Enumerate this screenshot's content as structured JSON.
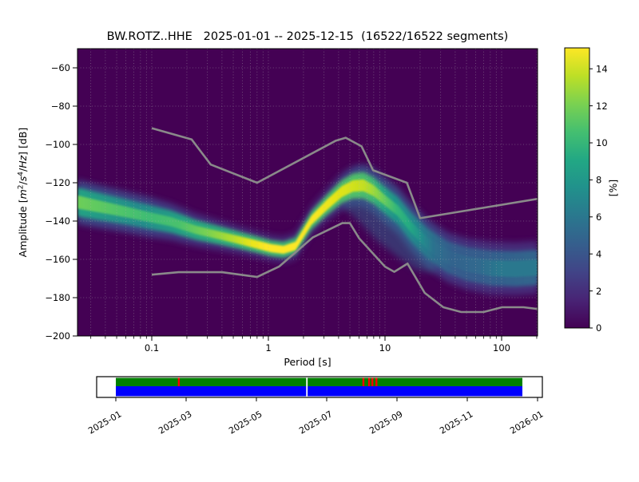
{
  "title": "BW.ROTZ..HHE   2025-01-01 -- 2025-12-15  (16522/16522 segments)",
  "axes": {
    "xlabel": "Period [s]",
    "ylabel": "Amplitude [m²/s⁴/Hz] [dB]",
    "ylabel_parts": [
      {
        "t": "Amplitude ["
      },
      {
        "t": "m",
        "i": true
      },
      {
        "t": "2",
        "sup": true
      },
      {
        "t": "/"
      },
      {
        "t": "s",
        "i": true
      },
      {
        "t": "4",
        "sup": true
      },
      {
        "t": "/"
      },
      {
        "t": "Hz",
        "i": true
      },
      {
        "t": "] [dB]"
      }
    ],
    "x_ticks": [
      {
        "p": 0.1,
        "label": "0.1"
      },
      {
        "p": 1,
        "label": "1"
      },
      {
        "p": 10,
        "label": "10"
      },
      {
        "p": 100,
        "label": "100"
      }
    ],
    "y_ticks": [
      {
        "db": -60,
        "label": "−60"
      },
      {
        "db": -80,
        "label": "−80"
      },
      {
        "db": -100,
        "label": "−100"
      },
      {
        "db": -120,
        "label": "−120"
      },
      {
        "db": -140,
        "label": "−140"
      },
      {
        "db": -160,
        "label": "−160"
      },
      {
        "db": -180,
        "label": "−180"
      },
      {
        "db": -200,
        "label": "−200"
      }
    ]
  },
  "colorbar": {
    "label": "[%]",
    "ticks": [
      0,
      2,
      4,
      6,
      8,
      10,
      12,
      14
    ],
    "vmax": 15.1,
    "colormap": "viridis",
    "gradient": [
      [
        0,
        "#440154"
      ],
      [
        0.1,
        "#482475"
      ],
      [
        0.2,
        "#414487"
      ],
      [
        0.3,
        "#355f8d"
      ],
      [
        0.4,
        "#2a788e"
      ],
      [
        0.5,
        "#21918c"
      ],
      [
        0.6,
        "#22a884"
      ],
      [
        0.7,
        "#44bf70"
      ],
      [
        0.8,
        "#7ad151"
      ],
      [
        0.9,
        "#bddf26"
      ],
      [
        1,
        "#fde725"
      ]
    ]
  },
  "timeline": {
    "months": [
      "2025-01",
      "2025-03",
      "2025-05",
      "2025-07",
      "2025-09",
      "2025-11",
      "2026-01"
    ],
    "coverage_start": "2025-01-01",
    "coverage_end": "2025-12-15",
    "gap_fracs": [
      0.155,
      0.609,
      0.623,
      0.631,
      0.641
    ],
    "boundary_frac": 0.47,
    "colors": {
      "top_row": "#008000",
      "bottom_row": "#0000ff",
      "gap": "#ff0000",
      "background": "#ffffff",
      "border": "#000000"
    }
  },
  "chart_data": {
    "type": "heatmap",
    "title": "BW.ROTZ..HHE   2025-01-01 -- 2025-12-15  (16522/16522 segments)",
    "xlabel": "Period [s]",
    "ylabel": "Amplitude [m²/s⁴/Hz] [dB]",
    "x_scale": "log",
    "xlim": [
      0.023,
      203
    ],
    "ylim": [
      -200,
      -50
    ],
    "xticks": [
      0.1,
      1,
      10,
      100
    ],
    "yticks": [
      -60,
      -80,
      -100,
      -120,
      -140,
      -160,
      -180,
      -200
    ],
    "grid": true,
    "legend_position": "none",
    "colorbar_label": "[%]",
    "colorbar_range": [
      0,
      15.1
    ],
    "segments_used": 16522,
    "segments_total": 16522,
    "mode_curve_format": [
      "period_s",
      "db_center",
      "halfwidth_db_core",
      "halfwidth_db_mid",
      "halfwidth_db_outer"
    ],
    "mode_curve": [
      [
        0.023,
        -130.0,
        3.4,
        7.5,
        11.5
      ],
      [
        0.031,
        -131.7,
        3.2,
        7.2,
        11.2
      ],
      [
        0.042,
        -133.3,
        3.0,
        6.9,
        10.9
      ],
      [
        0.062,
        -135.4,
        2.8,
        6.6,
        10.6
      ],
      [
        0.095,
        -137.9,
        2.6,
        6.3,
        10.4
      ],
      [
        0.148,
        -140.4,
        2.4,
        5.8,
        9.5
      ],
      [
        0.238,
        -144.6,
        2.2,
        5.2,
        8.5
      ],
      [
        0.382,
        -147.5,
        2.1,
        4.8,
        7.8
      ],
      [
        0.566,
        -150.0,
        2.1,
        4.5,
        7.3
      ],
      [
        0.777,
        -152.1,
        2.1,
        4.3,
        7.0
      ],
      [
        1.06,
        -154.2,
        2.1,
        4.2,
        6.9
      ],
      [
        1.35,
        -155.0,
        2.1,
        4.2,
        6.9
      ],
      [
        1.71,
        -153.0,
        2.2,
        4.4,
        7.0
      ],
      [
        2.34,
        -139.6,
        2.4,
        4.8,
        7.5
      ],
      [
        3.21,
        -131.3,
        2.7,
        5.4,
        8.5
      ],
      [
        4.27,
        -124.6,
        2.9,
        6.0,
        9.4
      ],
      [
        5.32,
        -121.7,
        3.0,
        6.5,
        10.2
      ],
      [
        6.53,
        -121.3,
        3.1,
        6.9,
        11.0
      ],
      [
        8.02,
        -124.2,
        2.9,
        6.9,
        11.5
      ],
      [
        10.0,
        -129.2,
        2.7,
        6.9,
        11.9
      ],
      [
        12.9,
        -134.6,
        2.8,
        7.2,
        12.2
      ],
      [
        16.8,
        -143.3,
        2.9,
        7.5,
        12.5
      ],
      [
        23.1,
        -151.7,
        3.3,
        7.9,
        12.7
      ],
      [
        34.2,
        -158.8,
        3.8,
        8.3,
        12.9
      ],
      [
        50.7,
        -162.5,
        4.0,
        8.8,
        13.3
      ],
      [
        81.5,
        -164.6,
        4.2,
        9.2,
        13.8
      ],
      [
        131,
        -165.0,
        4.2,
        9.2,
        13.8
      ],
      [
        205,
        -164.2,
        4.2,
        9.2,
        13.8
      ]
    ],
    "storm_spread_polygon": [
      [
        4.39,
        -129.6
      ],
      [
        6.53,
        -128.8
      ],
      [
        9.68,
        -133.8
      ],
      [
        14.3,
        -142.1
      ],
      [
        21.3,
        -152.1
      ],
      [
        26.9,
        -158.8
      ],
      [
        26.9,
        -167.1
      ],
      [
        18.2,
        -165.4
      ],
      [
        12.3,
        -157.9
      ],
      [
        8.3,
        -149.6
      ],
      [
        5.87,
        -139.6
      ],
      [
        4.39,
        -132.9
      ]
    ],
    "noise_models": {
      "nhnm": [
        [
          0.1,
          -91.5
        ],
        [
          0.22,
          -97.4
        ],
        [
          0.32,
          -110.5
        ],
        [
          0.8,
          -120.0
        ],
        [
          3.8,
          -98.0
        ],
        [
          4.6,
          -96.5
        ],
        [
          6.3,
          -101.0
        ],
        [
          7.9,
          -113.5
        ],
        [
          15.4,
          -120.0
        ],
        [
          20.0,
          -138.5
        ],
        [
          354.8,
          -126.0
        ]
      ],
      "nlnm": [
        [
          0.1,
          -168.0
        ],
        [
          0.17,
          -166.7
        ],
        [
          0.4,
          -166.7
        ],
        [
          0.8,
          -169.2
        ],
        [
          1.24,
          -163.7
        ],
        [
          2.4,
          -148.6
        ],
        [
          4.3,
          -141.1
        ],
        [
          5.0,
          -141.1
        ],
        [
          6.0,
          -149.0
        ],
        [
          10.0,
          -163.8
        ],
        [
          12.0,
          -166.5
        ],
        [
          15.6,
          -162.2
        ],
        [
          21.9,
          -177.5
        ],
        [
          31.6,
          -185.0
        ],
        [
          45.0,
          -187.5
        ],
        [
          70.0,
          -187.5
        ],
        [
          101.0,
          -185.0
        ],
        [
          154.0,
          -185.0
        ],
        [
          328.0,
          -187.5
        ]
      ]
    }
  },
  "style": {
    "plot_background": "#440154",
    "noise_model_line": "#8a8a8a",
    "grid_dots": "#b3b3b3",
    "band_gradients": {
      "core": [
        [
          0.023,
          "#6ece58"
        ],
        [
          0.05,
          "#52c569"
        ],
        [
          0.095,
          "#3fbc74"
        ],
        [
          0.17,
          "#4ac16d"
        ],
        [
          0.3,
          "#7ad151"
        ],
        [
          0.5,
          "#b5de2b"
        ],
        [
          0.7,
          "#e7e419"
        ],
        [
          0.95,
          "#fde725"
        ],
        [
          1.8,
          "#fde725"
        ],
        [
          2.6,
          "#f6e620"
        ],
        [
          3.6,
          "#e7e419"
        ],
        [
          5.0,
          "#d5e21a"
        ],
        [
          6.6,
          "#c2df23"
        ],
        [
          8.0,
          "#9bd93c"
        ],
        [
          10.0,
          "#63cb5f"
        ],
        [
          12.5,
          "#35b779"
        ],
        [
          16,
          "#25ab82"
        ],
        [
          20,
          "#21918c"
        ],
        [
          26,
          "#2c728e"
        ],
        [
          38,
          "#33638d"
        ],
        [
          60,
          "#31688e"
        ],
        [
          95,
          "#2a788e"
        ],
        [
          205,
          "#2a788e"
        ]
      ],
      "mid": [
        [
          0.023,
          "#22a884"
        ],
        [
          0.08,
          "#21918c"
        ],
        [
          0.2,
          "#25ab82"
        ],
        [
          0.45,
          "#31b57b"
        ],
        [
          0.9,
          "#44bf70"
        ],
        [
          1.6,
          "#3fbc74"
        ],
        [
          3.0,
          "#4ac16d"
        ],
        [
          5.5,
          "#52c569"
        ],
        [
          7.5,
          "#44bf70"
        ],
        [
          9.5,
          "#27ad81"
        ],
        [
          12,
          "#1f998a"
        ],
        [
          16,
          "#21918c"
        ],
        [
          21,
          "#26818e"
        ],
        [
          28,
          "#2e6d8e"
        ],
        [
          40,
          "#355e8d"
        ],
        [
          60,
          "#36608d"
        ],
        [
          100,
          "#32648e"
        ],
        [
          205,
          "#31688e"
        ]
      ],
      "outer": [
        [
          0.023,
          "#3d4e8a"
        ],
        [
          0.095,
          "#414487"
        ],
        [
          0.4,
          "#46327e"
        ],
        [
          1.4,
          "#472d7b"
        ],
        [
          3,
          "#46327e"
        ],
        [
          6,
          "#3d4e8a"
        ],
        [
          10,
          "#3b528b"
        ],
        [
          20,
          "#3d4e8a"
        ],
        [
          40,
          "#453882"
        ],
        [
          100,
          "#46327e"
        ],
        [
          205,
          "#46327e"
        ]
      ],
      "storm": "#31688e"
    }
  }
}
